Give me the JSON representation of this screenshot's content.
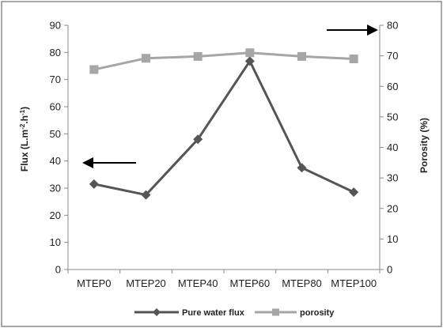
{
  "chart_data": {
    "type": "line",
    "categories": [
      "MTEP0",
      "MTEP20",
      "MTEP40",
      "MTEP60",
      "MTEP80",
      "MTEP100"
    ],
    "series": [
      {
        "name": "Pure water flux",
        "axis": "left",
        "color": "#555555",
        "marker": "diamond",
        "values": [
          31.5,
          27.5,
          48,
          76.8,
          37.5,
          28.5
        ]
      },
      {
        "name": "porosity",
        "axis": "right",
        "color": "#a6a6a6",
        "marker": "square",
        "values": [
          65.5,
          69.2,
          69.8,
          71,
          69.8,
          69
        ]
      }
    ],
    "y_left": {
      "label_parts": [
        "Flux (L.m",
        "-2",
        ".h",
        "-1",
        ")"
      ],
      "ylim": [
        0,
        90
      ],
      "ticks": [
        "0",
        "10",
        "20",
        "30",
        "40",
        "50",
        "60",
        "70",
        "80",
        "90"
      ]
    },
    "y_right": {
      "label": "Porosity (%)",
      "ylim": [
        0,
        80
      ],
      "ticks": [
        "0",
        "10",
        "20",
        "30",
        "40",
        "50",
        "60",
        "70",
        "80"
      ]
    },
    "annotations": [
      {
        "type": "arrow",
        "direction": "left",
        "meaning": "flux series uses left axis"
      },
      {
        "type": "arrow",
        "direction": "right",
        "meaning": "porosity series uses right axis"
      }
    ],
    "legend_position": "bottom",
    "grid": false
  }
}
